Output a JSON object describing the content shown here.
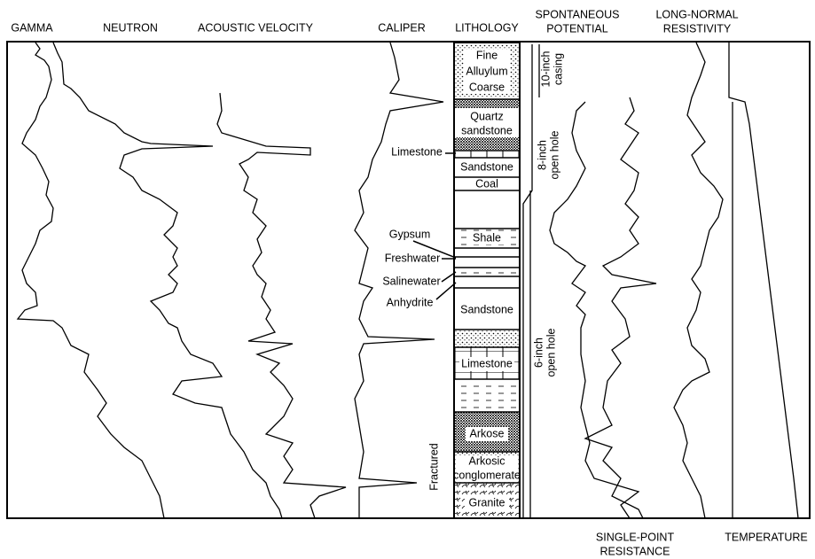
{
  "track_headers": {
    "gamma": "GAMMA",
    "neutron": "NEUTRON",
    "acoustic_velocity": "ACOUSTIC VELOCITY",
    "caliper": "CALIPER",
    "lithology": "LITHOLOGY",
    "spontaneous_potential": [
      "SPONTANEOUS",
      "POTENTIAL"
    ],
    "long_normal_resistivity": [
      "LONG-NORMAL",
      "RESISTIVITY"
    ],
    "single_point_resistance": [
      "SINGLE-POINT",
      "RESISTANCE"
    ],
    "temperature": "TEMPERATURE"
  },
  "lithology_layers": [
    [
      "Fine",
      "Alluylum",
      "Coarse"
    ],
    [
      "Quartz",
      "sandstone"
    ],
    [
      "Sandstone"
    ],
    [
      "Coal"
    ],
    [
      "Shale"
    ],
    [
      "Sandstone"
    ],
    [
      "Limestone"
    ],
    [
      "Arkose"
    ],
    [
      "Arkosic",
      "conglomerate"
    ],
    [
      "Granite"
    ]
  ],
  "lithology_callouts": [
    "Limestone",
    "Gypsum",
    "Freshwater",
    "Salinewater",
    "Anhydrite",
    "Fractured"
  ],
  "borehole_annotations": [
    [
      "10-inch",
      "casing"
    ],
    [
      "8-inch",
      "open hole"
    ],
    [
      "6-inch",
      "open hole"
    ]
  ]
}
